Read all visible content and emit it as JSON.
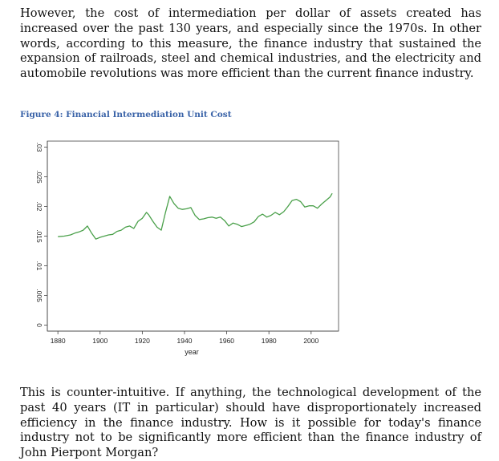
{
  "paragraphs": {
    "intro": "However, the cost of intermediation per dollar of assets created has increased over the past 130 years, and especially since the 1970s. In other words, according to this measure, the finance industry that sustained the expansion of railroads, steel and chemical industries, and the electricity and automobile revolutions was more efficient than the current finance industry.",
    "conclusion": "This is counter-intuitive. If anything, the technological development of the past 40 years (IT in particular) should have disproportionately increased efficiency in the finance industry. How is it possible for today's finance industry not to be significantly more efficient than the finance industry of John Pierpont Morgan?"
  },
  "figure": {
    "caption": "Figure 4: Financial Intermediation Unit Cost"
  },
  "chart_data": {
    "type": "line",
    "title": "Figure 4: Financial Intermediation Unit Cost",
    "xlabel": "year",
    "ylabel": "",
    "xlim": [
      1875,
      2013
    ],
    "ylim": [
      -0.001,
      0.031
    ],
    "x_ticks": [
      1880,
      1900,
      1920,
      1940,
      1960,
      1980,
      2000
    ],
    "y_ticks": [
      0,
      0.005,
      0.01,
      0.015,
      0.02,
      0.025,
      0.03
    ],
    "y_tick_labels": [
      "0",
      ".005",
      ".01",
      ".015",
      ".02",
      ".025",
      ".03"
    ],
    "grid": false,
    "colors": {
      "line": "#4aa04a",
      "axis": "#444444",
      "caption": "#3a63a8"
    },
    "series": [
      {
        "name": "unit cost",
        "x": [
          1880,
          1883,
          1886,
          1888,
          1890,
          1892,
          1894,
          1896,
          1898,
          1900,
          1902,
          1904,
          1906,
          1908,
          1910,
          1912,
          1914,
          1916,
          1918,
          1920,
          1922,
          1923,
          1925,
          1927,
          1929,
          1931,
          1933,
          1935,
          1937,
          1939,
          1941,
          1943,
          1945,
          1947,
          1949,
          1951,
          1953,
          1955,
          1957,
          1959,
          1961,
          1963,
          1965,
          1967,
          1969,
          1971,
          1973,
          1975,
          1977,
          1979,
          1981,
          1983,
          1985,
          1987,
          1989,
          1991,
          1993,
          1995,
          1997,
          1999,
          2001,
          2003,
          2005,
          2007,
          2009,
          2010
        ],
        "y": [
          0.0149,
          0.015,
          0.0152,
          0.0155,
          0.0157,
          0.016,
          0.0167,
          0.0155,
          0.0145,
          0.0148,
          0.015,
          0.0152,
          0.0153,
          0.0158,
          0.016,
          0.0165,
          0.0167,
          0.0163,
          0.0175,
          0.018,
          0.019,
          0.0186,
          0.0175,
          0.0165,
          0.016,
          0.019,
          0.0217,
          0.0205,
          0.0197,
          0.0195,
          0.0196,
          0.0198,
          0.0185,
          0.0178,
          0.0179,
          0.0181,
          0.0182,
          0.018,
          0.0182,
          0.0176,
          0.0167,
          0.0172,
          0.017,
          0.0166,
          0.0168,
          0.017,
          0.0174,
          0.0183,
          0.0187,
          0.0182,
          0.0185,
          0.019,
          0.0186,
          0.0191,
          0.02,
          0.021,
          0.0212,
          0.0208,
          0.0199,
          0.0201,
          0.0201,
          0.0197,
          0.0204,
          0.021,
          0.0216,
          0.0222
        ]
      }
    ]
  }
}
